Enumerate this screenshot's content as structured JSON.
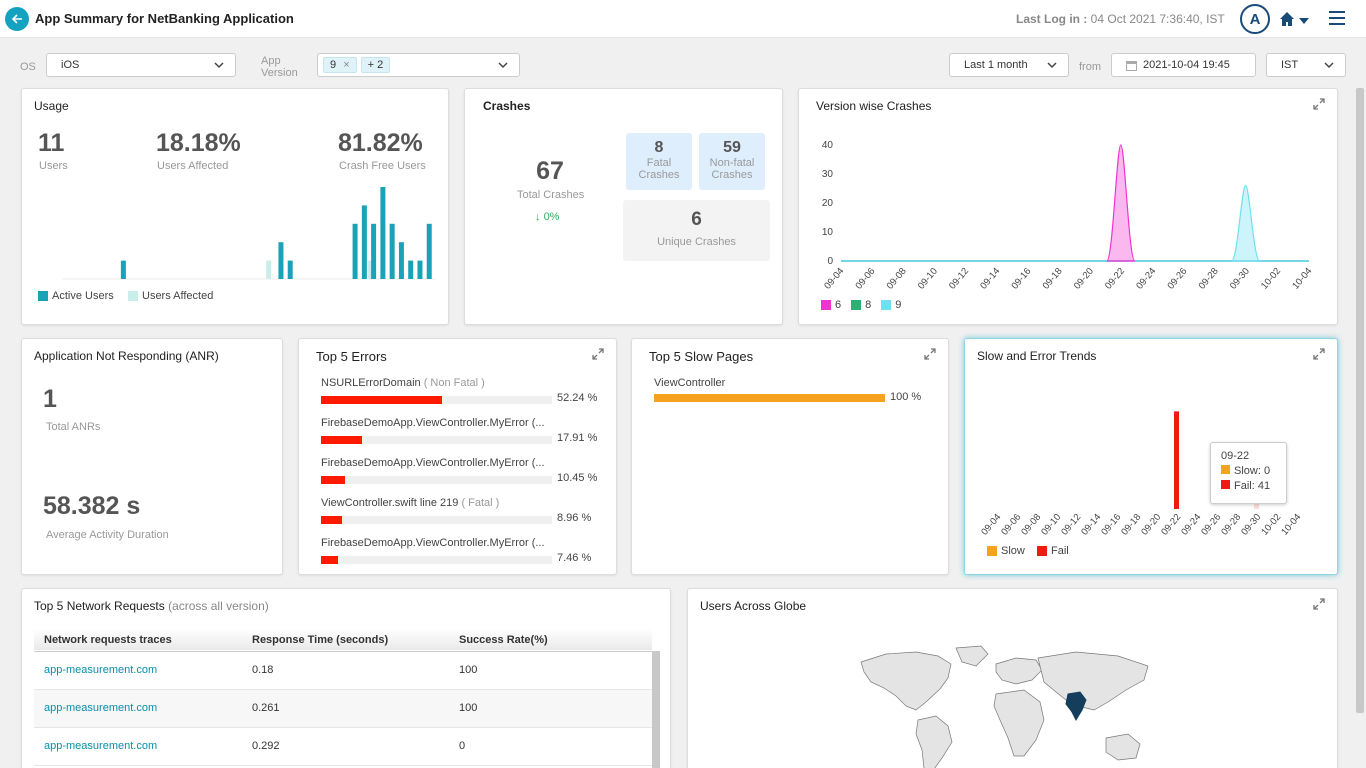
{
  "header": {
    "title": "App Summary for NetBanking Application",
    "last_login_label": "Last Log in :",
    "last_login_value": "04 Oct 2021 7:36:40, IST",
    "avatar_letter": "A"
  },
  "filters": {
    "os_label": "OS",
    "os_value": "iOS",
    "app_version_label_line1": "App",
    "app_version_label_line2": "Version",
    "version_chip": "9",
    "version_chip_close": "×",
    "version_more": "+ 2",
    "period_value": "Last 1 month",
    "from_label": "from",
    "from_value": "2021-10-04 19:45",
    "tz_value": "IST"
  },
  "usage": {
    "title": "Usage",
    "users_value": "11",
    "users_label": "Users",
    "affected_value": "18.18%",
    "affected_label": "Users Affected",
    "crashfree_value": "81.82%",
    "crashfree_label": "Crash Free Users",
    "legend_active": "Active Users",
    "legend_affected": "Users Affected",
    "colors": {
      "active": "#1aa3b8",
      "affected": "#c9ede8"
    }
  },
  "crashes": {
    "title": "Crashes",
    "total_value": "67",
    "total_label": "Total Crashes",
    "change": "0%",
    "fatal_value": "8",
    "fatal_label_1": "Fatal",
    "fatal_label_2": "Crashes",
    "nonfatal_value": "59",
    "nonfatal_label_1": "Non-fatal",
    "nonfatal_label_2": "Crashes",
    "unique_value": "6",
    "unique_label": "Unique Crashes"
  },
  "version_crashes": {
    "title": "Version wise Crashes",
    "legend": [
      {
        "label": "6",
        "color": "#f033d0"
      },
      {
        "label": "8",
        "color": "#2ab070"
      },
      {
        "label": "9",
        "color": "#6fe0f0"
      }
    ]
  },
  "anr": {
    "title": "Application Not Responding (ANR)",
    "total_value": "1",
    "total_label": "Total ANRs",
    "duration_value": "58.382 s",
    "duration_label": "Average Activity Duration"
  },
  "top_errors": {
    "title": "Top 5 Errors",
    "items": [
      {
        "name": "NSURLErrorDomain",
        "tag": "( Non Fatal )",
        "pct": "52.24 %",
        "ratio": 0.5224
      },
      {
        "name": "FirebaseDemoApp.ViewController.MyError (...",
        "tag": "",
        "pct": "17.91 %",
        "ratio": 0.1791
      },
      {
        "name": "FirebaseDemoApp.ViewController.MyError (...",
        "tag": "",
        "pct": "10.45 %",
        "ratio": 0.1045
      },
      {
        "name": "ViewController.swift line 219",
        "tag": "( Fatal )",
        "pct": "8.96 %",
        "ratio": 0.0896
      },
      {
        "name": "FirebaseDemoApp.ViewController.MyError (...",
        "tag": "",
        "pct": "7.46 %",
        "ratio": 0.0746
      }
    ]
  },
  "slow_pages": {
    "title": "Top 5 Slow Pages",
    "items": [
      {
        "name": "ViewController",
        "pct": "100 %",
        "ratio": 1.0
      }
    ]
  },
  "slow_error": {
    "title": "Slow and Error Trends",
    "tooltip_date": "09-22",
    "tooltip_slow": "Slow: 0",
    "tooltip_fail": "Fail: 41",
    "legend_slow": "Slow",
    "legend_fail": "Fail",
    "colors": {
      "slow": "#f5a21e",
      "fail": "#ee1c0e"
    }
  },
  "network": {
    "title": "Top 5 Network Requests",
    "subtitle": "(across all version)",
    "columns": [
      "Network requests traces",
      "Response Time (seconds)",
      "Success Rate(%)"
    ],
    "rows": [
      [
        "app-measurement.com",
        "0.18",
        "100"
      ],
      [
        "app-measurement.com",
        "0.261",
        "100"
      ],
      [
        "app-measurement.com",
        "0.292",
        "0"
      ]
    ]
  },
  "globe": {
    "title": "Users Across Globe"
  },
  "chart_data": [
    {
      "type": "bar",
      "title": "Usage",
      "series": [
        {
          "name": "Active Users",
          "values": [
            0,
            0,
            0,
            0,
            0,
            0,
            0,
            2,
            0,
            0,
            0,
            0,
            0,
            0,
            0,
            0,
            0,
            0,
            0,
            0,
            0,
            0,
            0,
            0,
            4,
            2,
            0,
            0,
            0,
            0,
            0,
            0,
            6,
            8,
            6,
            10,
            6,
            4,
            2,
            2,
            6
          ]
        },
        {
          "name": "Users Affected",
          "values": [
            0,
            0,
            0,
            0,
            0,
            0,
            0,
            0,
            0,
            0,
            0,
            0,
            0,
            0,
            0,
            0,
            0,
            0,
            0,
            0,
            0,
            0,
            0,
            2,
            0,
            0,
            0,
            0,
            0,
            0,
            0,
            0,
            0,
            0,
            2,
            0,
            0,
            0,
            0,
            0,
            0
          ]
        }
      ]
    },
    {
      "type": "area",
      "title": "Version wise Crashes",
      "x": [
        "09-04",
        "09-06",
        "09-08",
        "09-10",
        "09-12",
        "09-14",
        "09-16",
        "09-18",
        "09-20",
        "09-22",
        "09-24",
        "09-26",
        "09-28",
        "09-30",
        "10-02",
        "10-04"
      ],
      "yticks": [
        0,
        10,
        20,
        30,
        40
      ],
      "ylim": [
        0,
        42
      ],
      "series": [
        {
          "name": "6",
          "peak_x": "09-22",
          "peak_y": 40
        },
        {
          "name": "8",
          "peak_x": "",
          "peak_y": 0
        },
        {
          "name": "9",
          "peak_x": "09-30",
          "peak_y": 26
        }
      ]
    },
    {
      "type": "bar",
      "title": "Slow and Error Trends",
      "x": [
        "09-04",
        "09-06",
        "09-08",
        "09-10",
        "09-12",
        "09-14",
        "09-16",
        "09-18",
        "09-20",
        "09-22",
        "09-24",
        "09-26",
        "09-28",
        "09-30",
        "10-02",
        "10-04"
      ],
      "series": [
        {
          "name": "Slow",
          "values": {
            "09-22": 0,
            "09-30": 0
          }
        },
        {
          "name": "Fail",
          "values": {
            "09-22": 41,
            "09-30": 24
          }
        }
      ]
    }
  ]
}
